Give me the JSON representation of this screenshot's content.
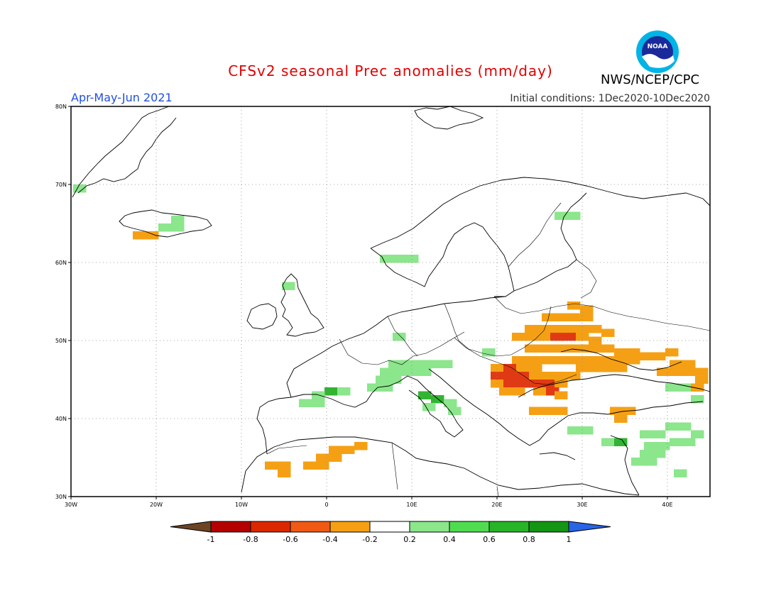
{
  "title": "CFSv2 seasonal Prec anomalies (mm/day)",
  "agency": "NWS/NCEP/CPC",
  "logo_text": "NOAA",
  "period": "Apr-May-Jun 2021",
  "initial_conditions": "Initial conditions: 1Dec2020-10Dec2020",
  "axes": {
    "lon_ticks": [
      "30W",
      "20W",
      "10W",
      "0",
      "10E",
      "20E",
      "30E",
      "40E"
    ],
    "lat_ticks": [
      "80N",
      "70N",
      "60N",
      "50N",
      "40N",
      "30N"
    ],
    "lon_range": [
      -30,
      45
    ],
    "lat_range": [
      30,
      80
    ]
  },
  "colorbar": {
    "labels": [
      "-1",
      "-0.8",
      "-0.6",
      "-0.4",
      "-0.2",
      "0.2",
      "0.4",
      "0.6",
      "0.8",
      "1"
    ],
    "colors": [
      "#6b4424",
      "#b40000",
      "#dc2800",
      "#f05a14",
      "#f5a014",
      "#ffffff",
      "#8ce68c",
      "#50dc50",
      "#28b428",
      "#149614",
      "#2864e6"
    ]
  },
  "colors": {
    "dry_strong": "#e03a14",
    "dry": "#f5a014",
    "wet": "#8ce68c",
    "wet_strong": "#32b432"
  },
  "anomaly_cells": [
    {
      "lon": -29,
      "lat": 69.5,
      "v": 0.3
    },
    {
      "lon": -22,
      "lat": 63.5,
      "v": -0.3
    },
    {
      "lon": -20.5,
      "lat": 63.5,
      "v": -0.3
    },
    {
      "lon": -19,
      "lat": 64.5,
      "v": 0.3
    },
    {
      "lon": -17.5,
      "lat": 64.5,
      "v": 0.3
    },
    {
      "lon": -17.5,
      "lat": 65.5,
      "v": 0.3
    },
    {
      "lon": -4.5,
      "lat": 57,
      "v": 0.3
    },
    {
      "lon": 7,
      "lat": 60.5,
      "v": 0.3
    },
    {
      "lon": 8.5,
      "lat": 60.5,
      "v": 0.3
    },
    {
      "lon": 10,
      "lat": 60.5,
      "v": 0.3
    },
    {
      "lon": 27.5,
      "lat": 66,
      "v": 0.3
    },
    {
      "lon": 29,
      "lat": 66,
      "v": 0.3
    },
    {
      "lon": 8.5,
      "lat": 50.5,
      "v": 0.3
    },
    {
      "lon": 19,
      "lat": 48.5,
      "v": 0.3
    },
    {
      "lon": 8,
      "lat": 47,
      "v": 0.3
    },
    {
      "lon": 9.5,
      "lat": 47,
      "v": 0.3
    },
    {
      "lon": 11,
      "lat": 47,
      "v": 0.4
    },
    {
      "lon": 12.5,
      "lat": 47,
      "v": 0.3
    },
    {
      "lon": 14,
      "lat": 47,
      "v": 0.3
    },
    {
      "lon": 7,
      "lat": 46,
      "v": 0.3
    },
    {
      "lon": 8.5,
      "lat": 46,
      "v": 0.3
    },
    {
      "lon": 10,
      "lat": 46,
      "v": 0.3
    },
    {
      "lon": 11.5,
      "lat": 46,
      "v": 0.3
    },
    {
      "lon": 6.5,
      "lat": 45,
      "v": 0.3
    },
    {
      "lon": 8,
      "lat": 45,
      "v": 0.3
    },
    {
      "lon": 5.5,
      "lat": 44,
      "v": 0.3
    },
    {
      "lon": 7,
      "lat": 44,
      "v": 0.3
    },
    {
      "lon": 0.5,
      "lat": 43.5,
      "v": 0.7
    },
    {
      "lon": -1,
      "lat": 43,
      "v": 0.3
    },
    {
      "lon": 2,
      "lat": 43.5,
      "v": 0.4
    },
    {
      "lon": -2.5,
      "lat": 42,
      "v": 0.3
    },
    {
      "lon": -1,
      "lat": 42,
      "v": 0.3
    },
    {
      "lon": 11.5,
      "lat": 43,
      "v": 0.7
    },
    {
      "lon": 13,
      "lat": 42.5,
      "v": 0.7
    },
    {
      "lon": 14.5,
      "lat": 42,
      "v": 0.4
    },
    {
      "lon": 12,
      "lat": 41.5,
      "v": 0.3
    },
    {
      "lon": 15,
      "lat": 41,
      "v": 0.3
    },
    {
      "lon": 40.5,
      "lat": 44,
      "v": 0.3
    },
    {
      "lon": 42,
      "lat": 44,
      "v": 0.3
    },
    {
      "lon": 43.5,
      "lat": 42.5,
      "v": 0.3
    },
    {
      "lon": 29,
      "lat": 38.5,
      "v": 0.3
    },
    {
      "lon": 30.5,
      "lat": 38.5,
      "v": 0.3
    },
    {
      "lon": 33,
      "lat": 37,
      "v": 0.3
    },
    {
      "lon": 34.5,
      "lat": 37,
      "v": 0.5
    },
    {
      "lon": 37.5,
      "lat": 38,
      "v": 0.3
    },
    {
      "lon": 39,
      "lat": 38,
      "v": 0.3
    },
    {
      "lon": 40.5,
      "lat": 39,
      "v": 0.3
    },
    {
      "lon": 42,
      "lat": 39,
      "v": 0.3
    },
    {
      "lon": 43.5,
      "lat": 38,
      "v": 0.3
    },
    {
      "lon": 38,
      "lat": 36.5,
      "v": 0.3
    },
    {
      "lon": 39.5,
      "lat": 36.5,
      "v": 0.3
    },
    {
      "lon": 41,
      "lat": 37,
      "v": 0.3
    },
    {
      "lon": 42.5,
      "lat": 37,
      "v": 0.3
    },
    {
      "lon": 37.5,
      "lat": 35.5,
      "v": 0.3
    },
    {
      "lon": 39,
      "lat": 35.5,
      "v": 0.3
    },
    {
      "lon": 36.5,
      "lat": 34.5,
      "v": 0.3
    },
    {
      "lon": 38,
      "lat": 34.5,
      "v": 0.3
    },
    {
      "lon": 41.5,
      "lat": 33,
      "v": 0.3
    },
    {
      "lon": 29,
      "lat": 54.5,
      "v": -0.3
    },
    {
      "lon": 30.5,
      "lat": 54,
      "v": -0.3
    },
    {
      "lon": 26,
      "lat": 53,
      "v": -0.3
    },
    {
      "lon": 27.5,
      "lat": 53,
      "v": -0.3
    },
    {
      "lon": 29,
      "lat": 53,
      "v": -0.3
    },
    {
      "lon": 30.5,
      "lat": 53,
      "v": -0.3
    },
    {
      "lon": 24,
      "lat": 51.5,
      "v": -0.3
    },
    {
      "lon": 25.5,
      "lat": 51.5,
      "v": -0.3
    },
    {
      "lon": 27,
      "lat": 51.5,
      "v": -0.3
    },
    {
      "lon": 28.5,
      "lat": 51.5,
      "v": -0.3
    },
    {
      "lon": 30,
      "lat": 51.5,
      "v": -0.3
    },
    {
      "lon": 31.5,
      "lat": 51.5,
      "v": -0.3
    },
    {
      "lon": 33,
      "lat": 51,
      "v": -0.3
    },
    {
      "lon": 22.5,
      "lat": 50.5,
      "v": -0.3
    },
    {
      "lon": 24,
      "lat": 50.5,
      "v": -0.3
    },
    {
      "lon": 25.5,
      "lat": 50.5,
      "v": -0.3
    },
    {
      "lon": 27,
      "lat": 50.5,
      "v": -0.5
    },
    {
      "lon": 28.5,
      "lat": 50.5,
      "v": -0.5
    },
    {
      "lon": 30,
      "lat": 50.5,
      "v": -0.3
    },
    {
      "lon": 31.5,
      "lat": 50,
      "v": -0.3
    },
    {
      "lon": 24,
      "lat": 49,
      "v": -0.3
    },
    {
      "lon": 25.5,
      "lat": 49,
      "v": -0.3
    },
    {
      "lon": 27,
      "lat": 49,
      "v": -0.3
    },
    {
      "lon": 28.5,
      "lat": 49,
      "v": -0.3
    },
    {
      "lon": 30,
      "lat": 49,
      "v": -0.3
    },
    {
      "lon": 31.5,
      "lat": 49,
      "v": -0.3
    },
    {
      "lon": 33,
      "lat": 49,
      "v": -0.3
    },
    {
      "lon": 34.5,
      "lat": 48.5,
      "v": -0.3
    },
    {
      "lon": 36,
      "lat": 48.5,
      "v": -0.3
    },
    {
      "lon": 22.5,
      "lat": 47.5,
      "v": -0.3
    },
    {
      "lon": 24,
      "lat": 47.5,
      "v": -0.3
    },
    {
      "lon": 25.5,
      "lat": 47.5,
      "v": -0.3
    },
    {
      "lon": 27,
      "lat": 47.5,
      "v": -0.3
    },
    {
      "lon": 28.5,
      "lat": 47.5,
      "v": -0.3
    },
    {
      "lon": 30,
      "lat": 47.5,
      "v": -0.3
    },
    {
      "lon": 31.5,
      "lat": 47.5,
      "v": -0.3
    },
    {
      "lon": 33,
      "lat": 47.5,
      "v": -0.3
    },
    {
      "lon": 34.5,
      "lat": 47.5,
      "v": -0.3
    },
    {
      "lon": 36,
      "lat": 47.5,
      "v": -0.3
    },
    {
      "lon": 37.5,
      "lat": 48,
      "v": -0.3
    },
    {
      "lon": 39,
      "lat": 48,
      "v": -0.3
    },
    {
      "lon": 40.5,
      "lat": 48.5,
      "v": -0.3
    },
    {
      "lon": 20,
      "lat": 46.5,
      "v": -0.3
    },
    {
      "lon": 21.5,
      "lat": 46.5,
      "v": -0.5
    },
    {
      "lon": 23,
      "lat": 46.5,
      "v": -0.3
    },
    {
      "lon": 24.5,
      "lat": 46.5,
      "v": -0.3
    },
    {
      "lon": 30,
      "lat": 46.5,
      "v": -0.3
    },
    {
      "lon": 31.5,
      "lat": 46.5,
      "v": -0.3
    },
    {
      "lon": 33,
      "lat": 46.5,
      "v": -0.3
    },
    {
      "lon": 34.5,
      "lat": 46.5,
      "v": -0.3
    },
    {
      "lon": 41,
      "lat": 47,
      "v": -0.3
    },
    {
      "lon": 42.5,
      "lat": 47,
      "v": -0.3
    },
    {
      "lon": 44,
      "lat": 46,
      "v": -0.3
    },
    {
      "lon": 20,
      "lat": 45.5,
      "v": -0.5
    },
    {
      "lon": 21.5,
      "lat": 45.5,
      "v": -0.5
    },
    {
      "lon": 23,
      "lat": 45.5,
      "v": -0.5
    },
    {
      "lon": 24.5,
      "lat": 45.5,
      "v": -0.3
    },
    {
      "lon": 26,
      "lat": 45.5,
      "v": -0.3
    },
    {
      "lon": 27.5,
      "lat": 45.5,
      "v": -0.3
    },
    {
      "lon": 29,
      "lat": 45.5,
      "v": -0.3
    },
    {
      "lon": 39.5,
      "lat": 46,
      "v": -0.3
    },
    {
      "lon": 41,
      "lat": 46,
      "v": -0.3
    },
    {
      "lon": 42.5,
      "lat": 46,
      "v": -0.3
    },
    {
      "lon": 20,
      "lat": 44.5,
      "v": -0.3
    },
    {
      "lon": 21.5,
      "lat": 44.5,
      "v": -0.5
    },
    {
      "lon": 23,
      "lat": 44.5,
      "v": -0.5
    },
    {
      "lon": 24.5,
      "lat": 44.5,
      "v": -0.5
    },
    {
      "lon": 26,
      "lat": 44.5,
      "v": -0.5
    },
    {
      "lon": 27.5,
      "lat": 44.5,
      "v": -0.3
    },
    {
      "lon": 44,
      "lat": 45,
      "v": -0.3
    },
    {
      "lon": 21,
      "lat": 43.5,
      "v": -0.3
    },
    {
      "lon": 22.5,
      "lat": 43.5,
      "v": -0.3
    },
    {
      "lon": 25,
      "lat": 43.5,
      "v": -0.3
    },
    {
      "lon": 26.5,
      "lat": 43.5,
      "v": -0.5
    },
    {
      "lon": 27.5,
      "lat": 43,
      "v": -0.3
    },
    {
      "lon": 24.5,
      "lat": 41,
      "v": -0.3
    },
    {
      "lon": 26,
      "lat": 41,
      "v": -0.3
    },
    {
      "lon": 27.5,
      "lat": 41,
      "v": -0.3
    },
    {
      "lon": 34,
      "lat": 41,
      "v": -0.3
    },
    {
      "lon": 35.5,
      "lat": 41,
      "v": -0.3
    },
    {
      "lon": 34.5,
      "lat": 40,
      "v": -0.3
    },
    {
      "lon": 43.5,
      "lat": 44,
      "v": -0.3
    },
    {
      "lon": 1,
      "lat": 36,
      "v": -0.3
    },
    {
      "lon": 2.5,
      "lat": 36,
      "v": -0.3
    },
    {
      "lon": 4,
      "lat": 36.5,
      "v": -0.3
    },
    {
      "lon": -0.5,
      "lat": 35,
      "v": -0.3
    },
    {
      "lon": 1,
      "lat": 35,
      "v": -0.3
    },
    {
      "lon": -2,
      "lat": 34,
      "v": -0.3
    },
    {
      "lon": -0.5,
      "lat": 34,
      "v": -0.3
    },
    {
      "lon": -6.5,
      "lat": 34,
      "v": -0.3
    },
    {
      "lon": -5,
      "lat": 34,
      "v": -0.3
    },
    {
      "lon": -5,
      "lat": 33,
      "v": -0.3
    }
  ]
}
